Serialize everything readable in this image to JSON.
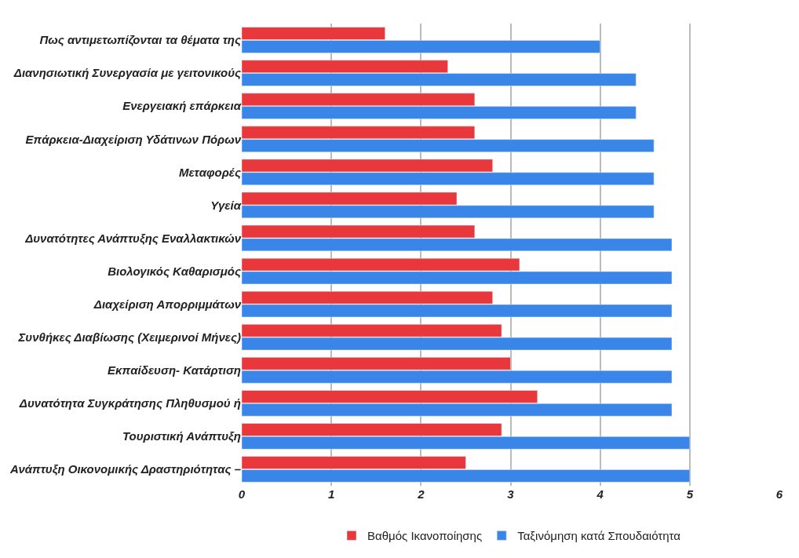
{
  "chart_data": {
    "type": "bar",
    "orientation": "horizontal",
    "categories": [
      "Πως αντιμετωπίζονται τα θέματα της",
      "Διανησιωτική Συνεργασία με γειτονικούς",
      "Ενεργειακή επάρκεια",
      "Επάρκεια-Διαχείριση Υδάτινων Πόρων",
      "Μεταφορές",
      "Υγεία",
      "Δυνατότητες Ανάπτυξης Εναλλακτικών",
      "Βιολογικός Καθαρισμός",
      "Διαχείριση Απορριμμάτων",
      "Συνθήκες Διαβίωσης (Χειμερινοί Μήνες)",
      "Εκπαίδευση- Κατάρτιση",
      "Δυνατότητα Συγκράτησης Πληθυσμού ή",
      "Τουριστική Ανάπτυξη",
      "Ανάπτυξη Οικονομικής Δραστηριότητας –"
    ],
    "series": [
      {
        "name": "Βαθμός Ικανοποίησης",
        "color": "#e8383b",
        "values": [
          1.6,
          2.3,
          2.6,
          2.6,
          2.8,
          2.4,
          2.6,
          3.1,
          2.8,
          2.9,
          3.0,
          3.3,
          2.9,
          2.5
        ]
      },
      {
        "name": "Ταξινόμηση κατά Σπουδαιότητα",
        "color": "#3a86e8",
        "values": [
          4.0,
          4.4,
          4.4,
          4.6,
          4.6,
          4.6,
          4.8,
          4.8,
          4.8,
          4.8,
          4.8,
          4.8,
          5.0,
          5.0
        ]
      }
    ],
    "xlim": [
      0,
      6
    ],
    "xticks": [
      0,
      1,
      2,
      3,
      4,
      5,
      6
    ],
    "grid": "x",
    "legend": "bottom"
  }
}
